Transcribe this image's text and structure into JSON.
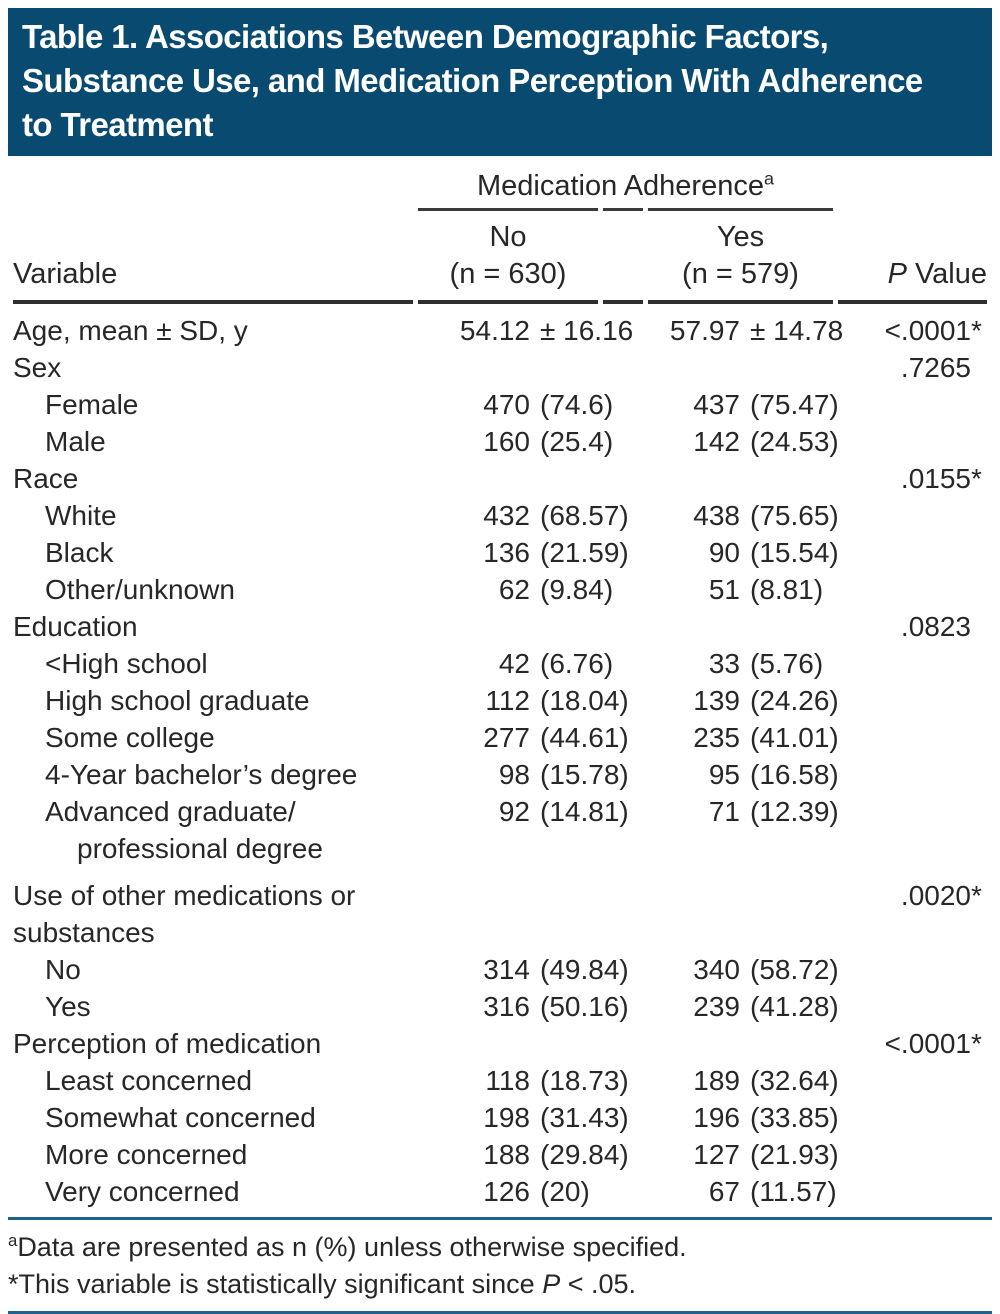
{
  "title": {
    "lines": [
      "Table 1. Associations Between Demographic Factors,",
      "Substance Use, and Medication Perception With Adherence",
      "to Treatment"
    ]
  },
  "colors": {
    "title_bg": "#084a70",
    "rule_blue": "#1f618f",
    "rule_dark": "#2e2e2e",
    "text": "#272727"
  },
  "header": {
    "group": "Medication Adherence",
    "group_sup": "a",
    "variable": "Variable",
    "no_line1": "No",
    "no_line2": "(n = 630)",
    "yes_line1": "Yes",
    "yes_line2": "(n = 579)",
    "p_italic": "P",
    "p_rest": " Value"
  },
  "rows": [
    {
      "label": "Age, mean ± SD, y",
      "indent": 0,
      "no_n": "54.12",
      "no_pct": "± 16.16",
      "yes_n": "57.97",
      "yes_pct": "± 14.78",
      "p": "<.0001",
      "star": "*"
    },
    {
      "label": "Sex",
      "indent": 0,
      "p": ".7265",
      "star": ""
    },
    {
      "label": "Female",
      "indent": 1,
      "no_n": "470",
      "no_pct": "(74.6)",
      "yes_n": "437",
      "yes_pct": "(75.47)"
    },
    {
      "label": "Male",
      "indent": 1,
      "no_n": "160",
      "no_pct": "(25.4)",
      "yes_n": "142",
      "yes_pct": "(24.53)"
    },
    {
      "label": "Race",
      "indent": 0,
      "p": ".0155",
      "star": "*"
    },
    {
      "label": "White",
      "indent": 1,
      "no_n": "432",
      "no_pct": "(68.57)",
      "yes_n": "438",
      "yes_pct": "(75.65)"
    },
    {
      "label": "Black",
      "indent": 1,
      "no_n": "136",
      "no_pct": "(21.59)",
      "yes_n": "90",
      "yes_pct": "(15.54)"
    },
    {
      "label": "Other/unknown",
      "indent": 1,
      "no_n": "62",
      "no_pct": "(9.84)",
      "yes_n": "51",
      "yes_pct": "(8.81)"
    },
    {
      "label": "Education",
      "indent": 0,
      "p": ".0823",
      "star": ""
    },
    {
      "label": "<High school",
      "indent": 1,
      "no_n": "42",
      "no_pct": "(6.76)",
      "yes_n": "33",
      "yes_pct": "(5.76)"
    },
    {
      "label": "High school graduate",
      "indent": 1,
      "no_n": "112",
      "no_pct": "(18.04)",
      "yes_n": "139",
      "yes_pct": "(24.26)"
    },
    {
      "label": "Some college",
      "indent": 1,
      "no_n": "277",
      "no_pct": "(44.61)",
      "yes_n": "235",
      "yes_pct": "(41.01)"
    },
    {
      "label": "4-Year bachelor’s degree",
      "indent": 1,
      "no_n": "98",
      "no_pct": "(15.78)",
      "yes_n": "95",
      "yes_pct": "(16.58)"
    },
    {
      "label": "Advanced graduate/",
      "label2": "professional degree",
      "indent": 1,
      "indent2": 2,
      "no_n": "92",
      "no_pct": "(14.81)",
      "yes_n": "71",
      "yes_pct": "(12.39)"
    },
    {
      "label": "Use of other medications or",
      "label2": "substances",
      "indent": 0,
      "indent2": 0,
      "p": ".0020",
      "star": "*",
      "gap_before": true
    },
    {
      "label": "No",
      "indent": 1,
      "no_n": "314",
      "no_pct": "(49.84)",
      "yes_n": "340",
      "yes_pct": "(58.72)"
    },
    {
      "label": "Yes",
      "indent": 1,
      "no_n": "316",
      "no_pct": "(50.16)",
      "yes_n": "239",
      "yes_pct": "(41.28)"
    },
    {
      "label": "Perception of medication",
      "indent": 0,
      "p": "<.0001",
      "star": "*"
    },
    {
      "label": "Least concerned",
      "indent": 1,
      "no_n": "118",
      "no_pct": "(18.73)",
      "yes_n": "189",
      "yes_pct": "(32.64)"
    },
    {
      "label": "Somewhat concerned",
      "indent": 1,
      "no_n": "198",
      "no_pct": "(31.43)",
      "yes_n": "196",
      "yes_pct": "(33.85)"
    },
    {
      "label": "More concerned",
      "indent": 1,
      "no_n": "188",
      "no_pct": "(29.84)",
      "yes_n": "127",
      "yes_pct": "(21.93)"
    },
    {
      "label": "Very concerned",
      "indent": 1,
      "no_n": "126",
      "no_pct": "(20)",
      "yes_n": "67",
      "yes_pct": "(11.57)"
    }
  ],
  "footnotes": {
    "a_sup": "a",
    "a_text": "Data are presented as n (%) unless otherwise specified.",
    "star_prefix": "*This variable is statistically significant since ",
    "star_italic": "P",
    "star_suffix": " < .05."
  }
}
